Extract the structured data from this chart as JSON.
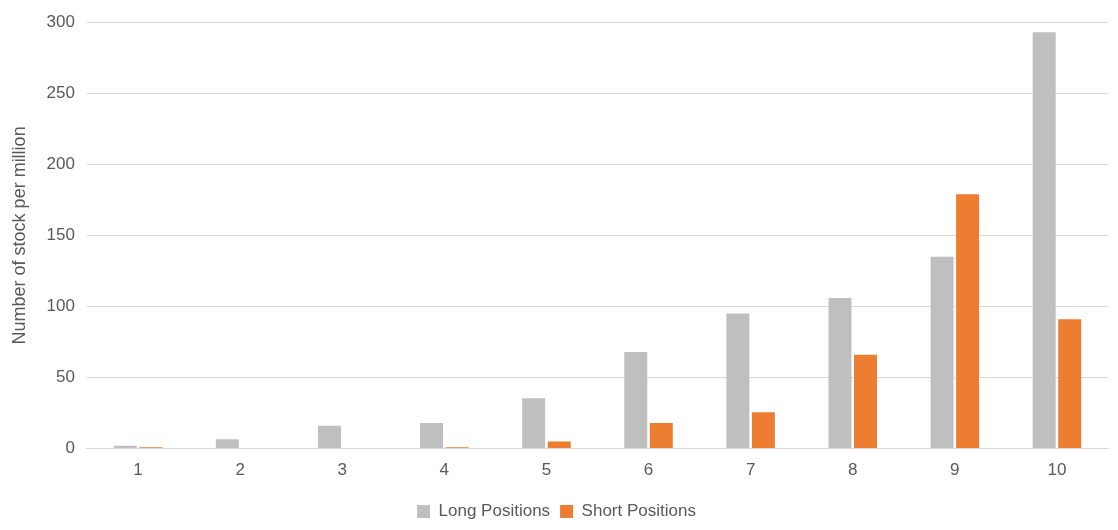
{
  "chart_data": {
    "type": "bar",
    "ylabel": "Number of stock per million",
    "categories": [
      "1",
      "2",
      "3",
      "4",
      "5",
      "6",
      "7",
      "8",
      "9",
      "10"
    ],
    "series": [
      {
        "name": "Long Positions",
        "color": "#bfbfbf",
        "values": [
          2,
          6.5,
          16,
          18,
          35.5,
          68,
          95,
          106,
          135,
          293
        ]
      },
      {
        "name": "Short Positions",
        "color": "#ed7d31",
        "values": [
          1,
          0,
          0,
          1,
          5,
          18,
          25.5,
          66,
          179,
          91
        ]
      }
    ],
    "ylim": [
      0,
      300
    ],
    "yticks": [
      0,
      50,
      100,
      150,
      200,
      250,
      300
    ],
    "grid": "y",
    "legend": "bottom"
  }
}
